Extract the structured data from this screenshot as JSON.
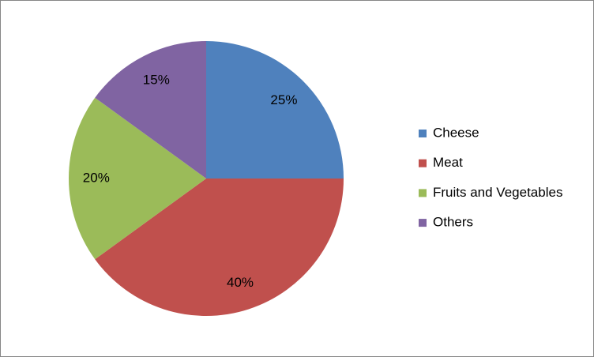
{
  "chart_data": {
    "type": "pie",
    "categories": [
      "Cheese",
      "Meat",
      "Fruits and Vegetables",
      "Others"
    ],
    "values": [
      25,
      40,
      20,
      15
    ],
    "value_labels": [
      "25%",
      "40%",
      "20%",
      "15%"
    ],
    "colors": [
      "#4f81bd",
      "#c0504d",
      "#9bbb59",
      "#8064a2"
    ],
    "legend": "right"
  }
}
